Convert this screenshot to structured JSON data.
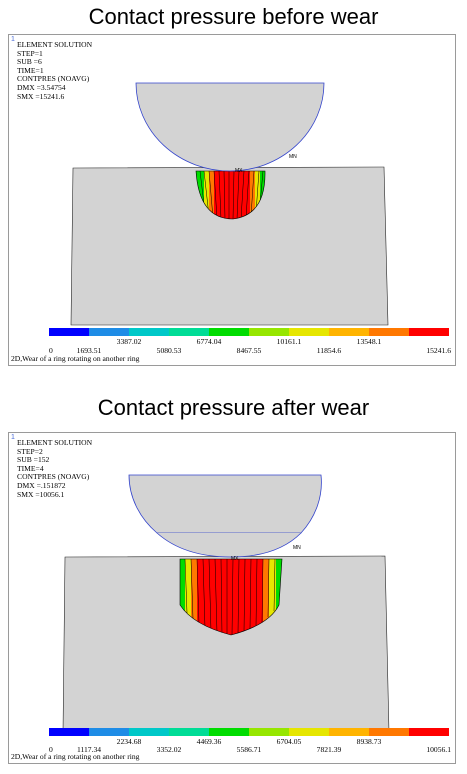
{
  "legend_colors": [
    "#0000ff",
    "#1e8ce6",
    "#00c8c8",
    "#00dc96",
    "#00dc00",
    "#96e600",
    "#e6e600",
    "#ffb400",
    "#ff7800",
    "#ff0000"
  ],
  "panels": [
    {
      "title": "Contact pressure before wear",
      "corner_mark": "1",
      "info": [
        "ELEMENT SOLUTION",
        "STEP=1",
        "SUB =6",
        "TIME=1",
        "CONTPRES (NOAVG)",
        "DMX =3.54754",
        "SMX =15241.6"
      ],
      "mx_label": "MX",
      "mn_label": "MN",
      "ticks_top": [
        "3387.02",
        "6774.04",
        "10161.1",
        "13548.1"
      ],
      "ticks_bottom": [
        "0",
        "1693.51",
        "5080.53",
        "8467.55",
        "11854.6",
        "15241.6"
      ],
      "caption": "2D,Wear of a ring rotating on another ring"
    },
    {
      "title": "Contact pressure after wear",
      "corner_mark": "1",
      "info": [
        "ELEMENT SOLUTION",
        "STEP=2",
        "SUB =152",
        "TIME=4",
        "CONTPRES (NOAVG)",
        "DMX =.151872",
        "SMX =10056.1"
      ],
      "mx_label": "MX",
      "mn_label": "MN",
      "ticks_top": [
        "2234.68",
        "4469.36",
        "6704.05",
        "8938.73"
      ],
      "ticks_bottom": [
        "0",
        "1117.34",
        "3352.02",
        "5586.71",
        "7821.39",
        "10056.1"
      ],
      "caption": "2D,Wear of a ring rotating on another ring"
    }
  ]
}
